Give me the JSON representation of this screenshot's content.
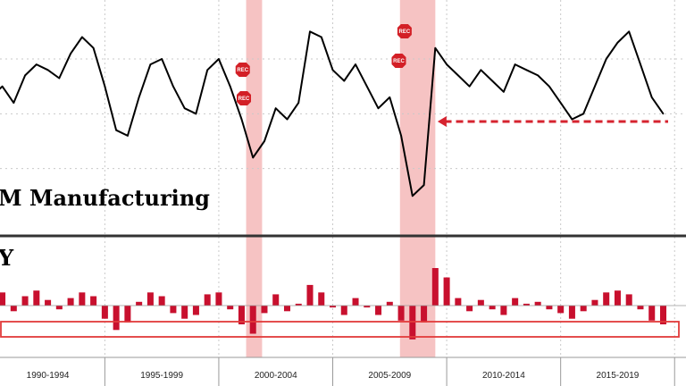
{
  "chart_data": [
    {
      "type": "line",
      "title": "M Manufacturing",
      "xlabel": "",
      "ylabel": "",
      "x_periods": [
        "1990-1994",
        "1995-1999",
        "2000-2004",
        "2005-2009",
        "2010-2014",
        "2015-2019"
      ],
      "recession_periods": [
        [
          2001.2,
          2001.9
        ],
        [
          2007.95,
          2009.5
        ]
      ],
      "recession_marker_label": "REC",
      "recession_markers": [
        2001.05,
        2001.1,
        2007.9,
        2008.15
      ],
      "x": [
        1990.0,
        1990.5,
        1991.0,
        1991.5,
        1992.0,
        1992.5,
        1993.0,
        1993.5,
        1994.0,
        1994.5,
        1995.0,
        1995.5,
        1996.0,
        1996.5,
        1997.0,
        1997.5,
        1998.0,
        1998.5,
        1999.0,
        1999.5,
        2000.0,
        2000.5,
        2001.0,
        2001.5,
        2002.0,
        2002.5,
        2003.0,
        2003.5,
        2004.0,
        2004.5,
        2005.0,
        2005.5,
        2006.0,
        2006.5,
        2007.0,
        2007.5,
        2008.0,
        2008.5,
        2009.0,
        2009.5,
        2010.0,
        2010.5,
        2011.0,
        2011.5,
        2012.0,
        2012.5,
        2013.0,
        2013.5,
        2014.0,
        2014.5,
        2015.0,
        2015.5,
        2016.0,
        2016.5,
        2017.0,
        2017.5,
        2018.0,
        2018.5,
        2019.0,
        2019.5
      ],
      "y": [
        66,
        70,
        64,
        74,
        78,
        76,
        73,
        82,
        88,
        84,
        70,
        54,
        52,
        66,
        78,
        80,
        70,
        62,
        60,
        76,
        80,
        70,
        58,
        44,
        50,
        62,
        58,
        64,
        90,
        88,
        76,
        72,
        78,
        70,
        62,
        66,
        52,
        30,
        34,
        84,
        78,
        74,
        70,
        76,
        72,
        68,
        78,
        76,
        74,
        70,
        64,
        58,
        60,
        70,
        80,
        86,
        90,
        78,
        66,
        60
      ],
      "reference_line_value": 60,
      "reference_line_style": "dashed-red-arrow"
    },
    {
      "type": "bar",
      "title": "Y",
      "xlabel": "",
      "ylabel": "",
      "x": [
        1990.0,
        1990.5,
        1991.0,
        1991.5,
        1992.0,
        1992.5,
        1993.0,
        1993.5,
        1994.0,
        1994.5,
        1995.0,
        1995.5,
        1996.0,
        1996.5,
        1997.0,
        1997.5,
        1998.0,
        1998.5,
        1999.0,
        1999.5,
        2000.0,
        2000.5,
        2001.0,
        2001.5,
        2002.0,
        2002.5,
        2003.0,
        2003.5,
        2004.0,
        2004.5,
        2005.0,
        2005.5,
        2006.0,
        2006.5,
        2007.0,
        2007.5,
        2008.0,
        2008.5,
        2009.0,
        2009.5,
        2010.0,
        2010.5,
        2011.0,
        2011.5,
        2012.0,
        2012.5,
        2013.0,
        2013.5,
        2014.0,
        2014.5,
        2015.0,
        2015.5,
        2016.0,
        2016.5,
        2017.0,
        2017.5,
        2018.0,
        2018.5,
        2019.0,
        2019.5
      ],
      "values": [
        18,
        14,
        -6,
        10,
        16,
        6,
        -4,
        8,
        14,
        10,
        -14,
        -26,
        -18,
        4,
        14,
        10,
        -8,
        -14,
        -10,
        12,
        14,
        -4,
        -20,
        -30,
        -8,
        12,
        -6,
        2,
        22,
        14,
        -2,
        -10,
        8,
        -2,
        -10,
        4,
        -16,
        -36,
        -18,
        40,
        30,
        8,
        -6,
        6,
        -4,
        -10,
        8,
        2,
        4,
        -4,
        -8,
        -14,
        -6,
        6,
        14,
        16,
        12,
        -4,
        -16,
        -20
      ],
      "highlight_band": "lows",
      "highlight_color": "#e23b3b"
    }
  ],
  "colors": {
    "recession_shading": "#f6c3c3",
    "line": "#000000",
    "bars": "#c8102e",
    "arrow": "#d6232f",
    "gridline": "#c9c9c9",
    "divider": "#333333"
  }
}
